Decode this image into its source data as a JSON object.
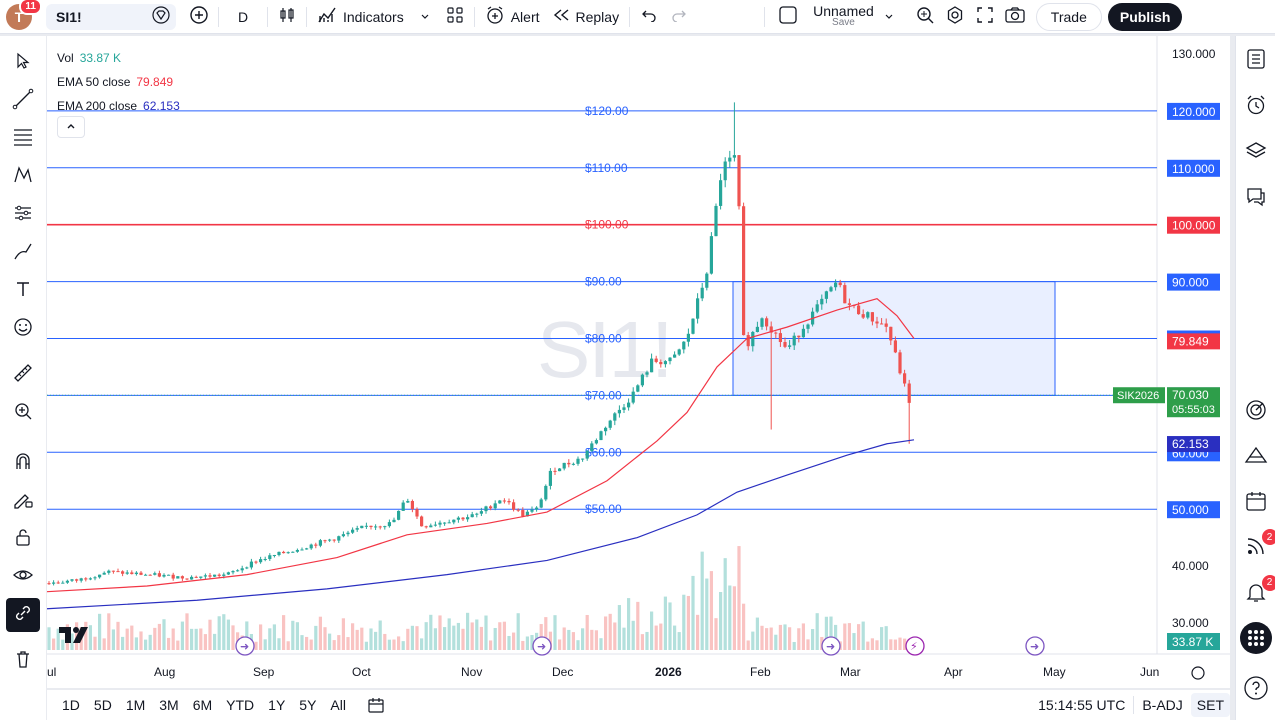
{
  "topbar": {
    "avatar_letter": "T",
    "notification_count": "11",
    "symbol": "SI1!",
    "interval": "D",
    "indicators_label": "Indicators",
    "alert_label": "Alert",
    "replay_label": "Replay",
    "layout_name": "Unnamed",
    "save_label": "Save",
    "trade_label": "Trade",
    "publish_label": "Publish"
  },
  "legend": {
    "vol_label": "Vol",
    "vol_value": "33.87 K",
    "ema50_label": "EMA 50 close",
    "ema50_value": "79.849",
    "ema200_label": "EMA 200 close",
    "ema200_value": "62.153"
  },
  "watermark": "SI1!",
  "colors": {
    "up": "#26a69a",
    "down": "#ef5350",
    "ema50": "#f23645",
    "ema200": "#2a2fc0",
    "hline": "#2962ff",
    "hline_red": "#f23645"
  },
  "hlines": [
    {
      "value": 120,
      "label": "$120.00",
      "tag": "120.000",
      "color": "blue"
    },
    {
      "value": 110,
      "label": "$110.00",
      "tag": "110.000",
      "color": "blue"
    },
    {
      "value": 100,
      "label": "$100.00",
      "tag": "100.000",
      "color": "red"
    },
    {
      "value": 90,
      "label": "$90.00",
      "tag": "90.000",
      "color": "blue"
    },
    {
      "value": 80,
      "label": "$80.00",
      "tag": "80.000",
      "color": "blue"
    },
    {
      "value": 70,
      "label": "$70.00",
      "tag": "70.000",
      "color": "blue"
    },
    {
      "value": 60,
      "label": "$60.00",
      "tag": "60.000",
      "color": "blue"
    },
    {
      "value": 50,
      "label": "$50.00",
      "tag": "50.000",
      "color": "blue"
    }
  ],
  "price_axis": [
    "130.000",
    "40.000",
    "30.000"
  ],
  "price_tags": {
    "ema50": "79.849",
    "ema200": "62.153",
    "symbol_tag": "SIK2026",
    "last": "70.030",
    "countdown": "05:55:03",
    "volume": "33.87 K"
  },
  "time_axis": [
    "ul",
    "Aug",
    "Sep",
    "Oct",
    "Nov",
    "Dec",
    "2026",
    "Feb",
    "Mar",
    "Apr",
    "May",
    "Jun"
  ],
  "bottombar": {
    "timeframes": [
      "1D",
      "5D",
      "1M",
      "3M",
      "6M",
      "YTD",
      "1Y",
      "5Y",
      "All"
    ],
    "clock": "15:14:55 UTC",
    "badj": "B-ADJ",
    "set": "SET"
  },
  "chart_data": {
    "type": "candlestick",
    "symbol": "SI1!",
    "ylim": [
      28,
      132
    ],
    "x_labels": [
      "Jul",
      "Aug",
      "Sep",
      "Oct",
      "Nov",
      "Dec",
      "2026",
      "Feb",
      "Mar",
      "Apr",
      "May",
      "Jun"
    ],
    "ohlc_keypoints": [
      {
        "t": "Jul",
        "close": 37
      },
      {
        "t": "Aug",
        "close": 38
      },
      {
        "t": "Sep",
        "close": 41
      },
      {
        "t": "Oct",
        "close": 47
      },
      {
        "t": "Nov",
        "close": 49
      },
      {
        "t": "Dec",
        "close": 58
      },
      {
        "t": "2026",
        "close": 76
      },
      {
        "t": "late Jan",
        "high": 121.5,
        "close": 112
      },
      {
        "t": "Feb",
        "close": 80
      },
      {
        "t": "Mar",
        "close": 90
      },
      {
        "t": "late Mar",
        "close": 70.03
      }
    ],
    "ema50_last": 79.849,
    "ema200_last": 62.153,
    "range_box": {
      "low": 70,
      "high": 90
    }
  }
}
